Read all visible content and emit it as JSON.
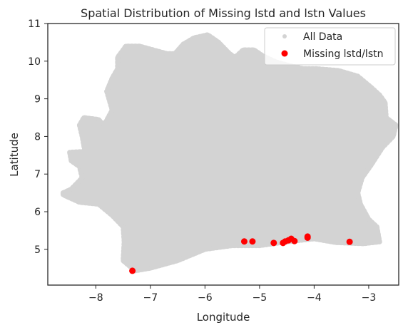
{
  "chart_data": {
    "type": "scatter",
    "title": "Spatial Distribution of Missing lstd and lstn Values",
    "xlabel": "Longitude",
    "ylabel": "Latitude",
    "xlim": [
      -8.88,
      -2.45
    ],
    "ylim": [
      4.05,
      11.0
    ],
    "xticks": [
      -8,
      -7,
      -6,
      -5,
      -4,
      -3
    ],
    "xtick_labels": [
      "−8",
      "−7",
      "−6",
      "−5",
      "−4",
      "−3"
    ],
    "yticks": [
      5,
      6,
      7,
      8,
      9,
      10,
      11
    ],
    "ytick_labels": [
      "5",
      "6",
      "7",
      "8",
      "9",
      "10",
      "11"
    ],
    "grid": false,
    "legend_position": "top-right",
    "series": [
      {
        "name": "All Data",
        "color": "#d3d3d3",
        "marker": "dense point cloud",
        "outline": [
          [
            -8.6,
            6.5
          ],
          [
            -8.45,
            6.6
          ],
          [
            -8.25,
            6.9
          ],
          [
            -8.3,
            7.2
          ],
          [
            -8.45,
            7.35
          ],
          [
            -8.48,
            7.58
          ],
          [
            -8.2,
            7.6
          ],
          [
            -8.25,
            8.0
          ],
          [
            -8.3,
            8.3
          ],
          [
            -8.22,
            8.5
          ],
          [
            -7.95,
            8.45
          ],
          [
            -7.85,
            8.3
          ],
          [
            -7.7,
            8.7
          ],
          [
            -7.8,
            9.2
          ],
          [
            -7.7,
            9.55
          ],
          [
            -7.6,
            9.8
          ],
          [
            -7.6,
            10.1
          ],
          [
            -7.45,
            10.4
          ],
          [
            -7.2,
            10.4
          ],
          [
            -6.95,
            10.3
          ],
          [
            -6.7,
            10.2
          ],
          [
            -6.55,
            10.2
          ],
          [
            -6.4,
            10.45
          ],
          [
            -6.2,
            10.62
          ],
          [
            -5.95,
            10.7
          ],
          [
            -5.75,
            10.5
          ],
          [
            -5.55,
            10.2
          ],
          [
            -5.45,
            10.1
          ],
          [
            -5.3,
            10.3
          ],
          [
            -5.1,
            10.3
          ],
          [
            -4.95,
            10.15
          ],
          [
            -4.7,
            9.98
          ],
          [
            -4.45,
            9.88
          ],
          [
            -4.2,
            9.8
          ],
          [
            -3.95,
            9.8
          ],
          [
            -3.55,
            9.75
          ],
          [
            -3.2,
            9.6
          ],
          [
            -2.95,
            9.3
          ],
          [
            -2.8,
            9.1
          ],
          [
            -2.7,
            8.9
          ],
          [
            -2.68,
            8.5
          ],
          [
            -2.5,
            8.3
          ],
          [
            -2.55,
            8.0
          ],
          [
            -2.75,
            7.7
          ],
          [
            -2.95,
            7.25
          ],
          [
            -3.12,
            6.9
          ],
          [
            -3.2,
            6.5
          ],
          [
            -3.15,
            6.2
          ],
          [
            -3.0,
            5.8
          ],
          [
            -2.85,
            5.6
          ],
          [
            -2.8,
            5.2
          ],
          [
            -3.1,
            5.15
          ],
          [
            -3.6,
            5.18
          ],
          [
            -4.0,
            5.28
          ],
          [
            -4.5,
            5.2
          ],
          [
            -5.0,
            5.1
          ],
          [
            -5.5,
            5.1
          ],
          [
            -6.0,
            5.0
          ],
          [
            -6.5,
            4.7
          ],
          [
            -7.0,
            4.5
          ],
          [
            -7.28,
            4.43
          ],
          [
            -7.5,
            4.7
          ],
          [
            -7.48,
            5.2
          ],
          [
            -7.5,
            5.6
          ],
          [
            -7.7,
            5.9
          ],
          [
            -7.95,
            6.2
          ],
          [
            -8.3,
            6.25
          ],
          [
            -8.6,
            6.45
          ]
        ]
      },
      {
        "name": "Missing lstd/lstn",
        "color": "#ff0000",
        "marker": "circle",
        "points": [
          [
            -7.33,
            4.43
          ],
          [
            -5.28,
            5.21
          ],
          [
            -5.13,
            5.21
          ],
          [
            -4.74,
            5.17
          ],
          [
            -4.57,
            5.17
          ],
          [
            -4.53,
            5.21
          ],
          [
            -4.47,
            5.24
          ],
          [
            -4.42,
            5.28
          ],
          [
            -4.36,
            5.22
          ],
          [
            -4.12,
            5.31
          ],
          [
            -4.12,
            5.34
          ],
          [
            -3.35,
            5.2
          ]
        ]
      }
    ]
  }
}
